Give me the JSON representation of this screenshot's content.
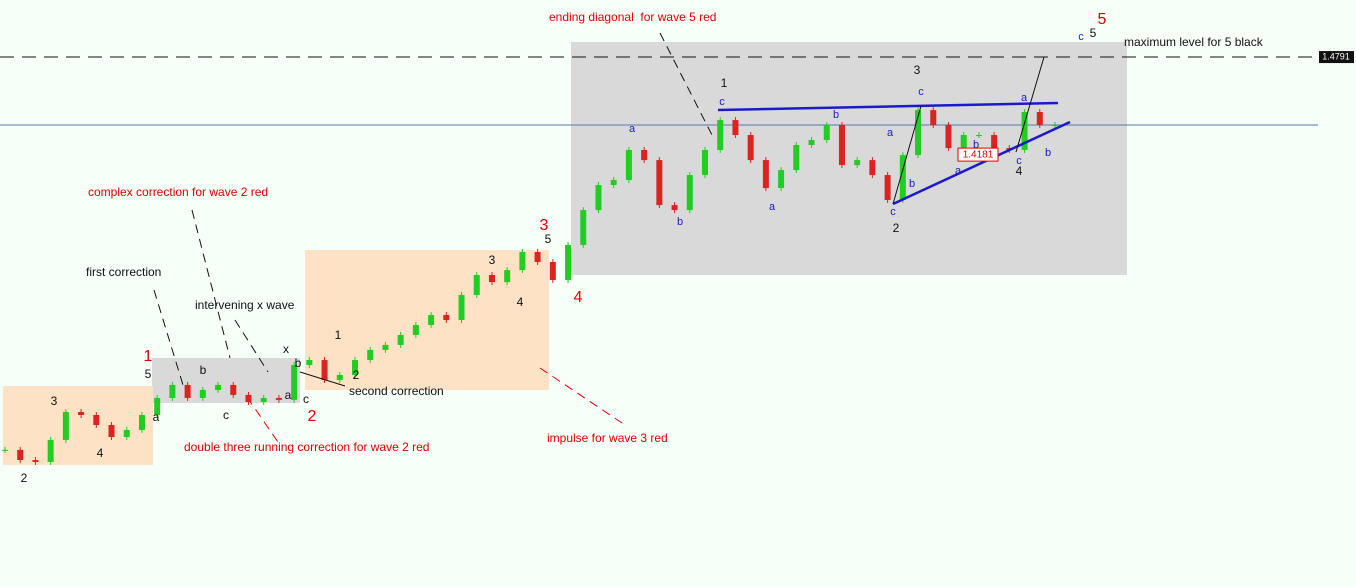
{
  "chart_data": {
    "type": "candlestick",
    "values": [
      1.2347,
      1.2284,
      1.2272,
      1.2409,
      1.2583,
      1.2564,
      1.2502,
      1.2427,
      1.2471,
      1.2564,
      1.267,
      1.2751,
      1.267,
      1.272,
      1.2751,
      1.2689,
      1.2645,
      1.267,
      1.2658,
      1.2875,
      1.2906,
      1.2782,
      1.2813,
      1.2906,
      1.2969,
      1.3,
      1.3062,
      1.3124,
      1.3186,
      1.3155,
      1.3311,
      1.3435,
      1.3391,
      1.3466,
      1.3578,
      1.3516,
      1.3404,
      1.3622,
      1.3839,
      1.3995,
      1.4026,
      1.4213,
      1.415,
      1.387,
      1.3839,
      1.4057,
      1.4213,
      1.4399,
      1.4306,
      1.415,
      1.3976,
      1.4088,
      1.4244,
      1.4275,
      1.4368,
      1.4119,
      1.415,
      1.4057,
      1.3902,
      1.4181,
      1.4461,
      1.4368,
      1.4225,
      1.4306,
      1.4306,
      1.4225,
      1.4213,
      1.4449,
      1.4368,
      1.4368
    ],
    "up_color": "#22cc22",
    "down_color": "#dd2222",
    "ylim": [
      1.1494,
      1.5146
    ],
    "level": 1.4791,
    "marker": {
      "value": 1.4181,
      "color": "#e00000"
    },
    "label_groups": [
      {
        "color": "#e00000",
        "texts": [
          "ending diagonal  for wave 5 red",
          "complex correction for wave 2 red",
          "double three running correction for wave 2 red",
          "impulse for wave 3 red",
          "5",
          "3",
          "4",
          "1",
          "2"
        ]
      },
      {
        "color": "#111111",
        "texts": [
          "first correction",
          "intervening x wave",
          "second correction",
          "maximum level for 5 black",
          "2",
          "3",
          "4",
          "5",
          "a",
          "b",
          "c",
          "x",
          "b",
          "a",
          "c",
          "1",
          "2",
          "3",
          "4",
          "5",
          "1",
          "3",
          "2",
          "4",
          "5"
        ]
      },
      {
        "color": "#1a1acc",
        "texts": [
          "c",
          "c",
          "a",
          "b",
          "a",
          "b",
          "a",
          "c",
          "b",
          "c",
          "a",
          "b",
          "a",
          "c",
          "b"
        ]
      }
    ]
  }
}
